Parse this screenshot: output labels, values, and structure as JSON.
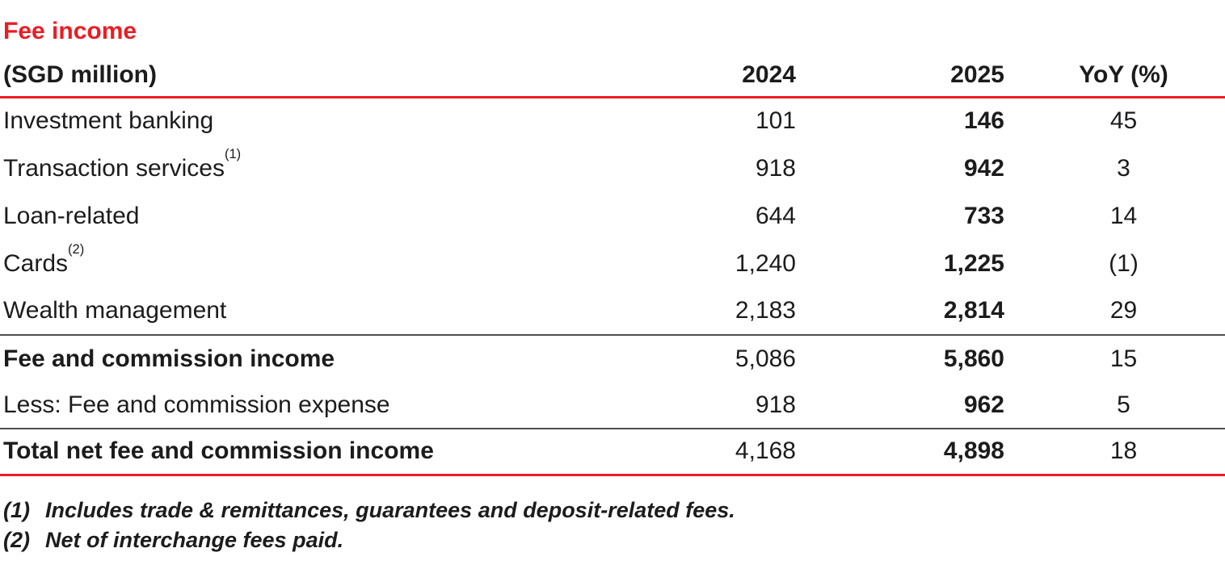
{
  "page": {
    "title": "Fee income",
    "accent_color": "#ec1c24",
    "rule_color": "#4d4d4d"
  },
  "table": {
    "unit_label": "(SGD million)",
    "columns": {
      "y2024": "2024",
      "y2025": "2025",
      "yoy": "YoY (%)"
    },
    "rows": [
      {
        "label": "Investment banking",
        "sup": "",
        "y2024": "101",
        "y2025": "146",
        "yoy": "45"
      },
      {
        "label": "Transaction services",
        "sup": "(1)",
        "y2024": "918",
        "y2025": "942",
        "yoy": "3"
      },
      {
        "label": "Loan-related",
        "sup": "",
        "y2024": "644",
        "y2025": "733",
        "yoy": "14"
      },
      {
        "label": "Cards",
        "sup": "(2)",
        "y2024": "1,240",
        "y2025": "1,225",
        "yoy": "(1)"
      },
      {
        "label": "Wealth management",
        "sup": "",
        "y2024": "2,183",
        "y2025": "2,814",
        "yoy": "29"
      },
      {
        "label": "Fee and commission income",
        "sup": "",
        "y2024": "5,086",
        "y2025": "5,860",
        "yoy": "15"
      },
      {
        "label": "Less: Fee and commission expense",
        "sup": "",
        "y2024": "918",
        "y2025": "962",
        "yoy": "5"
      },
      {
        "label": "Total net fee and commission income",
        "sup": "",
        "y2024": "4,168",
        "y2025": "4,898",
        "yoy": "18"
      }
    ],
    "footnotes": [
      {
        "marker": "(1)",
        "text": "Includes trade & remittances, guarantees and deposit-related fees."
      },
      {
        "marker": "(2)",
        "text": "Net of interchange fees paid."
      }
    ]
  }
}
